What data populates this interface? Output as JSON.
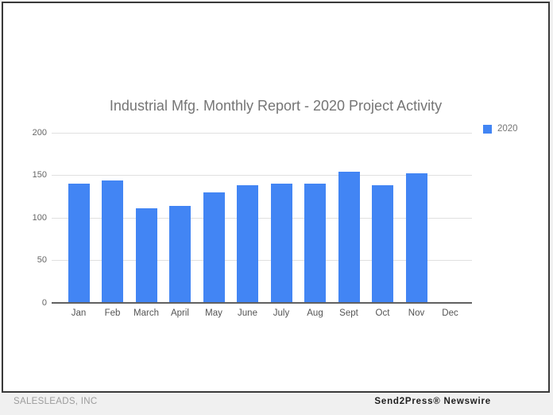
{
  "footer": {
    "left": "SALESLEADS, INC",
    "right": "Send2Press® Newswire"
  },
  "colors": {
    "bar": "#4285f4",
    "title_text": "#757575",
    "axis_text": "#545454",
    "ytick_text": "#666666",
    "legend_text": "#757575",
    "gridline": "#e0e0e0",
    "baseline": "#616161",
    "panel_border": "#3a3a3a",
    "footer_bg": "#f0f0f0"
  },
  "chart_data": {
    "type": "bar",
    "title": "Industrial Mfg. Monthly Report - 2020 Project Activity",
    "categories": [
      "Jan",
      "Feb",
      "March",
      "April",
      "May",
      "June",
      "July",
      "Aug",
      "Sept",
      "Oct",
      "Nov",
      "Dec"
    ],
    "series": [
      {
        "name": "2020",
        "color": "#4285f4",
        "values": [
          140,
          144,
          111,
          114,
          130,
          138,
          140,
          140,
          154,
          138,
          152,
          null
        ]
      }
    ],
    "xlabel": "",
    "ylabel": "",
    "ylim": [
      0,
      200
    ],
    "yticks": [
      0,
      50,
      100,
      150,
      200
    ],
    "grid": true,
    "legend_position": "top-right"
  }
}
